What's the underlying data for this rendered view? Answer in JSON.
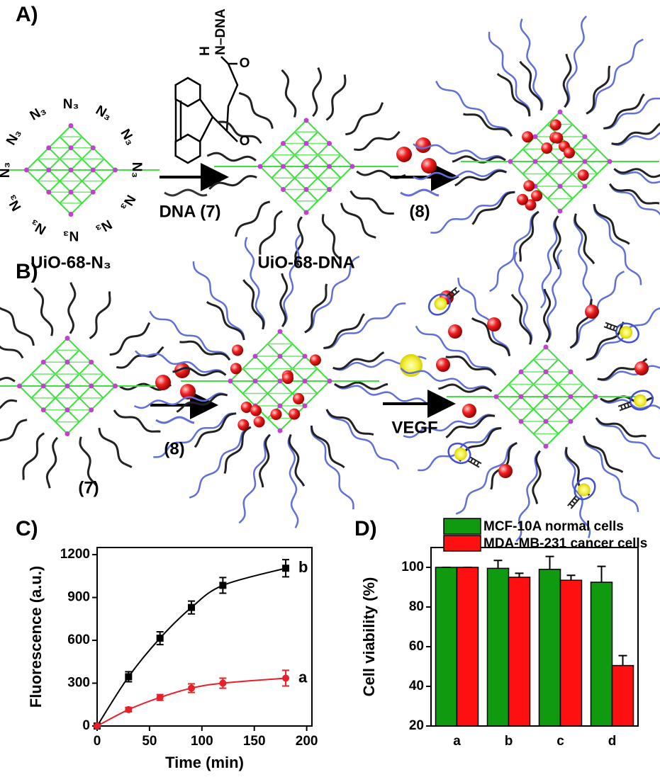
{
  "panels": {
    "a": "A)",
    "b": "B)",
    "c": "C)",
    "d": "D)"
  },
  "scheme": {
    "azide_labels": [
      "N₃",
      "N₃",
      "N₃",
      "N₃",
      "N₃",
      "N₃",
      "N₃",
      "N₃",
      "N₃",
      "N₃",
      "N₃",
      "N₃"
    ],
    "structure": {
      "h": "H",
      "amide": "N–DNA",
      "o1": "O",
      "o2": "O"
    },
    "labels": {
      "mof_n3": "UiO-68-N₃",
      "dna7": "DNA (7)",
      "mof_dna": "UiO-68-DNA",
      "reagent8_a": "(8)",
      "compound7": "(7)",
      "reagent8_b": "(8)",
      "vegf": "VEGF"
    }
  },
  "chart_data": [
    {
      "type": "line",
      "x_label": "Time (min)",
      "y_label": "Fluorescence (a.u.)",
      "x": [
        0,
        30,
        60,
        90,
        120,
        180
      ],
      "series": [
        {
          "name": "b",
          "color": "#000000",
          "marker": "square",
          "values": [
            0,
            345,
            615,
            830,
            985,
            1105
          ],
          "errors": [
            0,
            35,
            45,
            45,
            55,
            60
          ]
        },
        {
          "name": "a",
          "color": "#e8202a",
          "marker": "circle",
          "values": [
            0,
            115,
            200,
            265,
            300,
            335
          ],
          "errors": [
            0,
            15,
            20,
            30,
            35,
            55
          ]
        }
      ],
      "xlim": [
        0,
        205
      ],
      "xticks": [
        0,
        50,
        100,
        150,
        200
      ],
      "ylim": [
        0,
        1250
      ],
      "yticks": [
        0,
        300,
        600,
        900,
        1200
      ]
    },
    {
      "type": "bar",
      "y_label": "Cell viability (%)",
      "categories": [
        "a",
        "b",
        "c",
        "d"
      ],
      "series": [
        {
          "name": "MCF-10A normal cells",
          "color": "#0f9a0f",
          "values": [
            100,
            99.5,
            99,
            92.5
          ],
          "errors": [
            0,
            4,
            6.5,
            8
          ]
        },
        {
          "name": "MDA-MB-231 cancer cells",
          "color": "#ff1010",
          "values": [
            100,
            95,
            93.5,
            50.5
          ],
          "errors": [
            0,
            2,
            2.5,
            5
          ]
        }
      ],
      "ylim": [
        20,
        110
      ],
      "yticks": [
        20,
        40,
        60,
        80,
        100
      ],
      "legend": "top"
    }
  ]
}
